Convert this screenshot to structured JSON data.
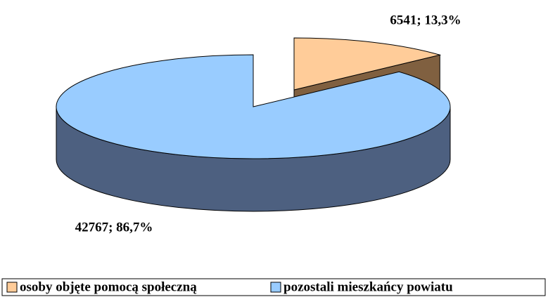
{
  "chart_data": {
    "type": "pie",
    "categories": [
      "osoby objęte pomocą społeczną",
      "pozostali mieszkańcy powiatu"
    ],
    "values": [
      6541,
      42767
    ],
    "value_labels": [
      "6541; 13,3%",
      "42767; 86,7%"
    ],
    "colors": [
      "#FFCC99",
      "#99CCFF"
    ],
    "side_colors": [
      "#806040",
      "#4D6080"
    ],
    "legend": "bottom"
  }
}
